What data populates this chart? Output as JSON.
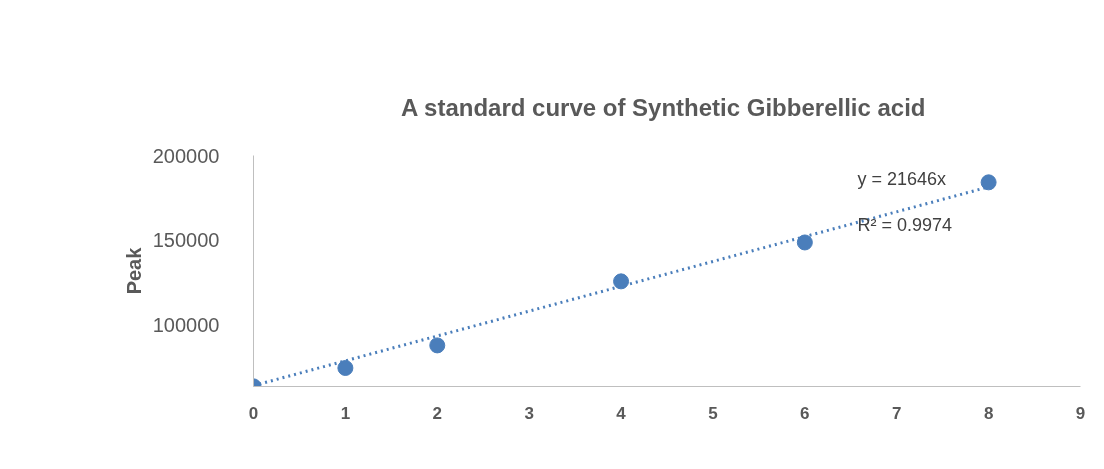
{
  "chart_data": {
    "type": "scatter",
    "title": "A standard curve of  Synthetic Gibberellic acid",
    "ylabel": "Peak",
    "x": [
      0,
      1,
      2,
      4,
      6,
      8
    ],
    "series": [
      {
        "color": "#4a7ebb",
        "values": [
          64100,
          74900,
          88200,
          125900,
          148800,
          184200
        ]
      },
      {
        "type": "line",
        "color": "#4a7ebb",
        "x": [
          0,
          8
        ],
        "values": [
          64500,
          181500
        ],
        "line_style": "dotted",
        "marker": "none"
      }
    ],
    "xlim": [
      0,
      9
    ],
    "xticks": [
      0,
      1,
      2,
      3,
      4,
      5,
      6,
      7,
      8,
      9
    ],
    "ylim": [
      64000,
      200000
    ],
    "yticks": [
      100000,
      150000,
      200000
    ],
    "annotations": [
      "y = 21646x",
      "R² = 0.9974"
    ],
    "marker": "circle",
    "grid": false
  }
}
